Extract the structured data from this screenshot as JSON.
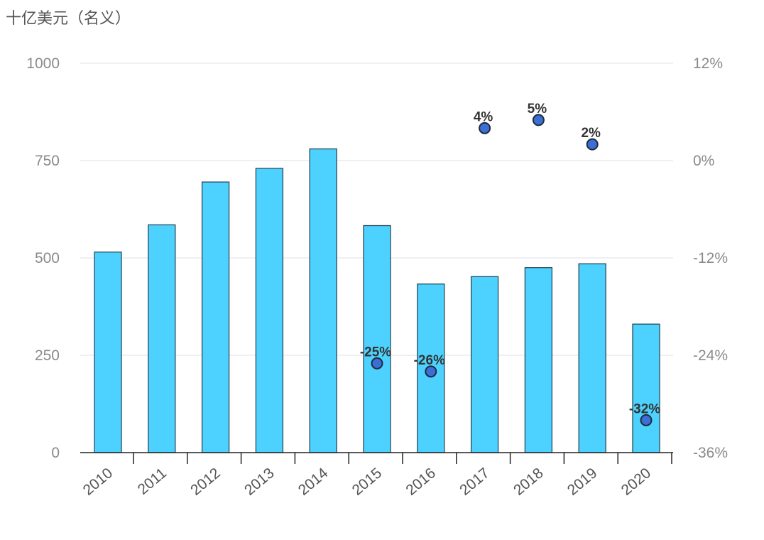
{
  "unit_label": "十亿美元（名义）",
  "chart_data": {
    "type": "bar",
    "categories": [
      "2010",
      "2011",
      "2012",
      "2013",
      "2014",
      "2015",
      "2016",
      "2017",
      "2018",
      "2019",
      "2020"
    ],
    "series": [
      {
        "type": "bar",
        "axis": "left",
        "values": [
          515,
          585,
          695,
          730,
          780,
          583,
          433,
          452,
          475,
          485,
          330
        ],
        "color": "#4dd2ff"
      },
      {
        "type": "scatter",
        "axis": "right",
        "categories": [
          "2015",
          "2016",
          "2017",
          "2018",
          "2019",
          "2020"
        ],
        "values": [
          -25,
          -26,
          4,
          5,
          2,
          -32
        ],
        "labels": [
          "-25%",
          "-26%",
          "4%",
          "5%",
          "2%",
          "-32%"
        ],
        "color": "#3b6fd6"
      }
    ],
    "y_left": {
      "min": 0,
      "max": 1000,
      "ticks": [
        "0",
        "250",
        "500",
        "750",
        "1000"
      ]
    },
    "y_right": {
      "min": -36,
      "max": 12,
      "ticks": [
        "-36%",
        "-24%",
        "-12%",
        "0%",
        "12%"
      ]
    },
    "grid": true
  }
}
